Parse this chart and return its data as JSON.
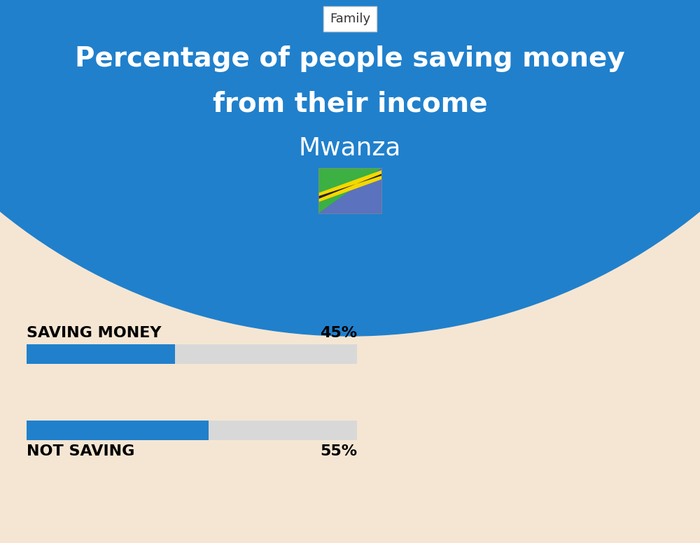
{
  "title_line1": "Percentage of people saving money",
  "title_line2": "from their income",
  "subtitle": "Mwanza",
  "category_label": "Family",
  "bg_color": "#f5e6d3",
  "blue_bg_color": "#2080cc",
  "bar_color": "#2080cc",
  "bar_bg_color": "#d8d8d8",
  "categories": [
    "SAVING MONEY",
    "NOT SAVING"
  ],
  "values": [
    45,
    55
  ],
  "label_fontsize": 16,
  "pct_fontsize": 16,
  "title_fontsize": 28,
  "subtitle_fontsize": 26,
  "category_fontsize": 13
}
